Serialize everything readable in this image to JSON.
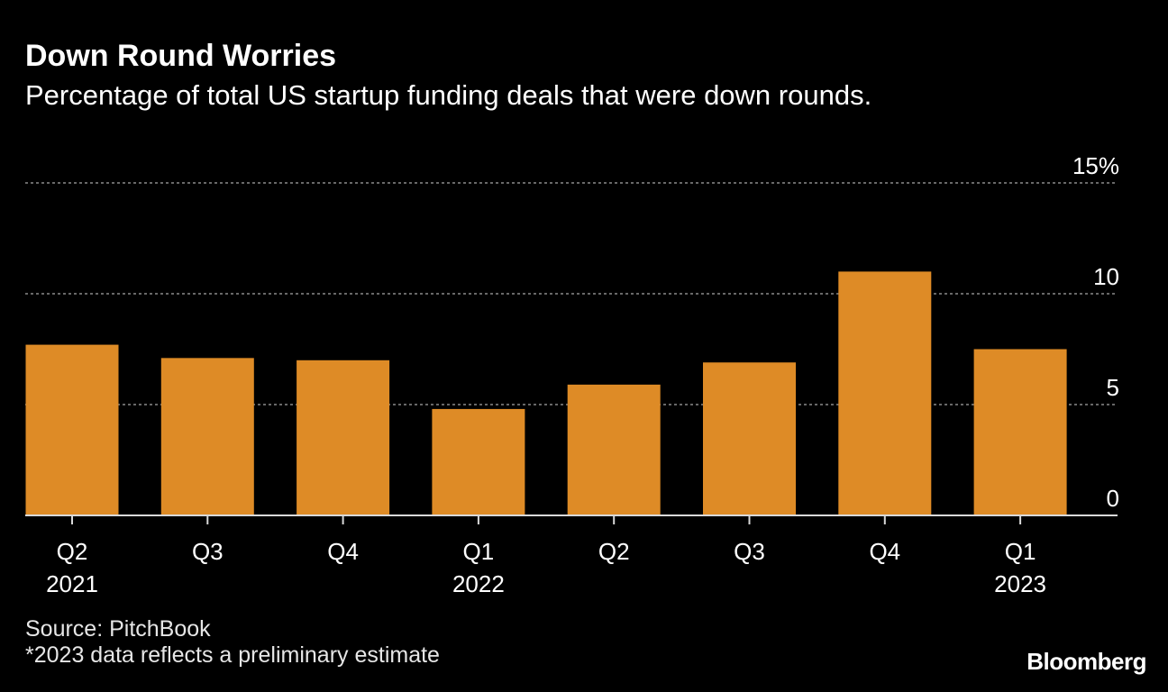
{
  "title": "Down Round Worries",
  "subtitle": "Percentage of total US startup funding deals that were down rounds.",
  "source": "Source: PitchBook",
  "footnote": "*2023 data reflects a preliminary estimate",
  "brand": "Bloomberg",
  "colors": {
    "background": "#000000",
    "bar": "#DE8B26",
    "grid": "#8a8a8a",
    "text": "#ffffff"
  },
  "chart_data": {
    "type": "bar",
    "title": "Down Round Worries",
    "subtitle": "Percentage of total US startup funding deals that were down rounds.",
    "xlabel": "",
    "ylabel": "",
    "categories": [
      "Q2 2021",
      "Q3 2021",
      "Q4 2021",
      "Q1 2022",
      "Q2 2022",
      "Q3 2022",
      "Q4 2022",
      "Q1 2023"
    ],
    "x_tick_labels": [
      {
        "quarter": "Q2",
        "year": "2021"
      },
      {
        "quarter": "Q3",
        "year": ""
      },
      {
        "quarter": "Q4",
        "year": ""
      },
      {
        "quarter": "Q1",
        "year": "2022"
      },
      {
        "quarter": "Q2",
        "year": ""
      },
      {
        "quarter": "Q3",
        "year": ""
      },
      {
        "quarter": "Q4",
        "year": ""
      },
      {
        "quarter": "Q1",
        "year": "2023"
      }
    ],
    "values": [
      7.7,
      7.1,
      7.0,
      4.8,
      5.9,
      6.9,
      11.0,
      7.5
    ],
    "ylim": [
      0,
      15
    ],
    "y_ticks": [
      {
        "value": 0,
        "label": "0"
      },
      {
        "value": 5,
        "label": "5"
      },
      {
        "value": 10,
        "label": "10"
      },
      {
        "value": 15,
        "label": "15%"
      }
    ],
    "grid": true,
    "legend": "none"
  }
}
